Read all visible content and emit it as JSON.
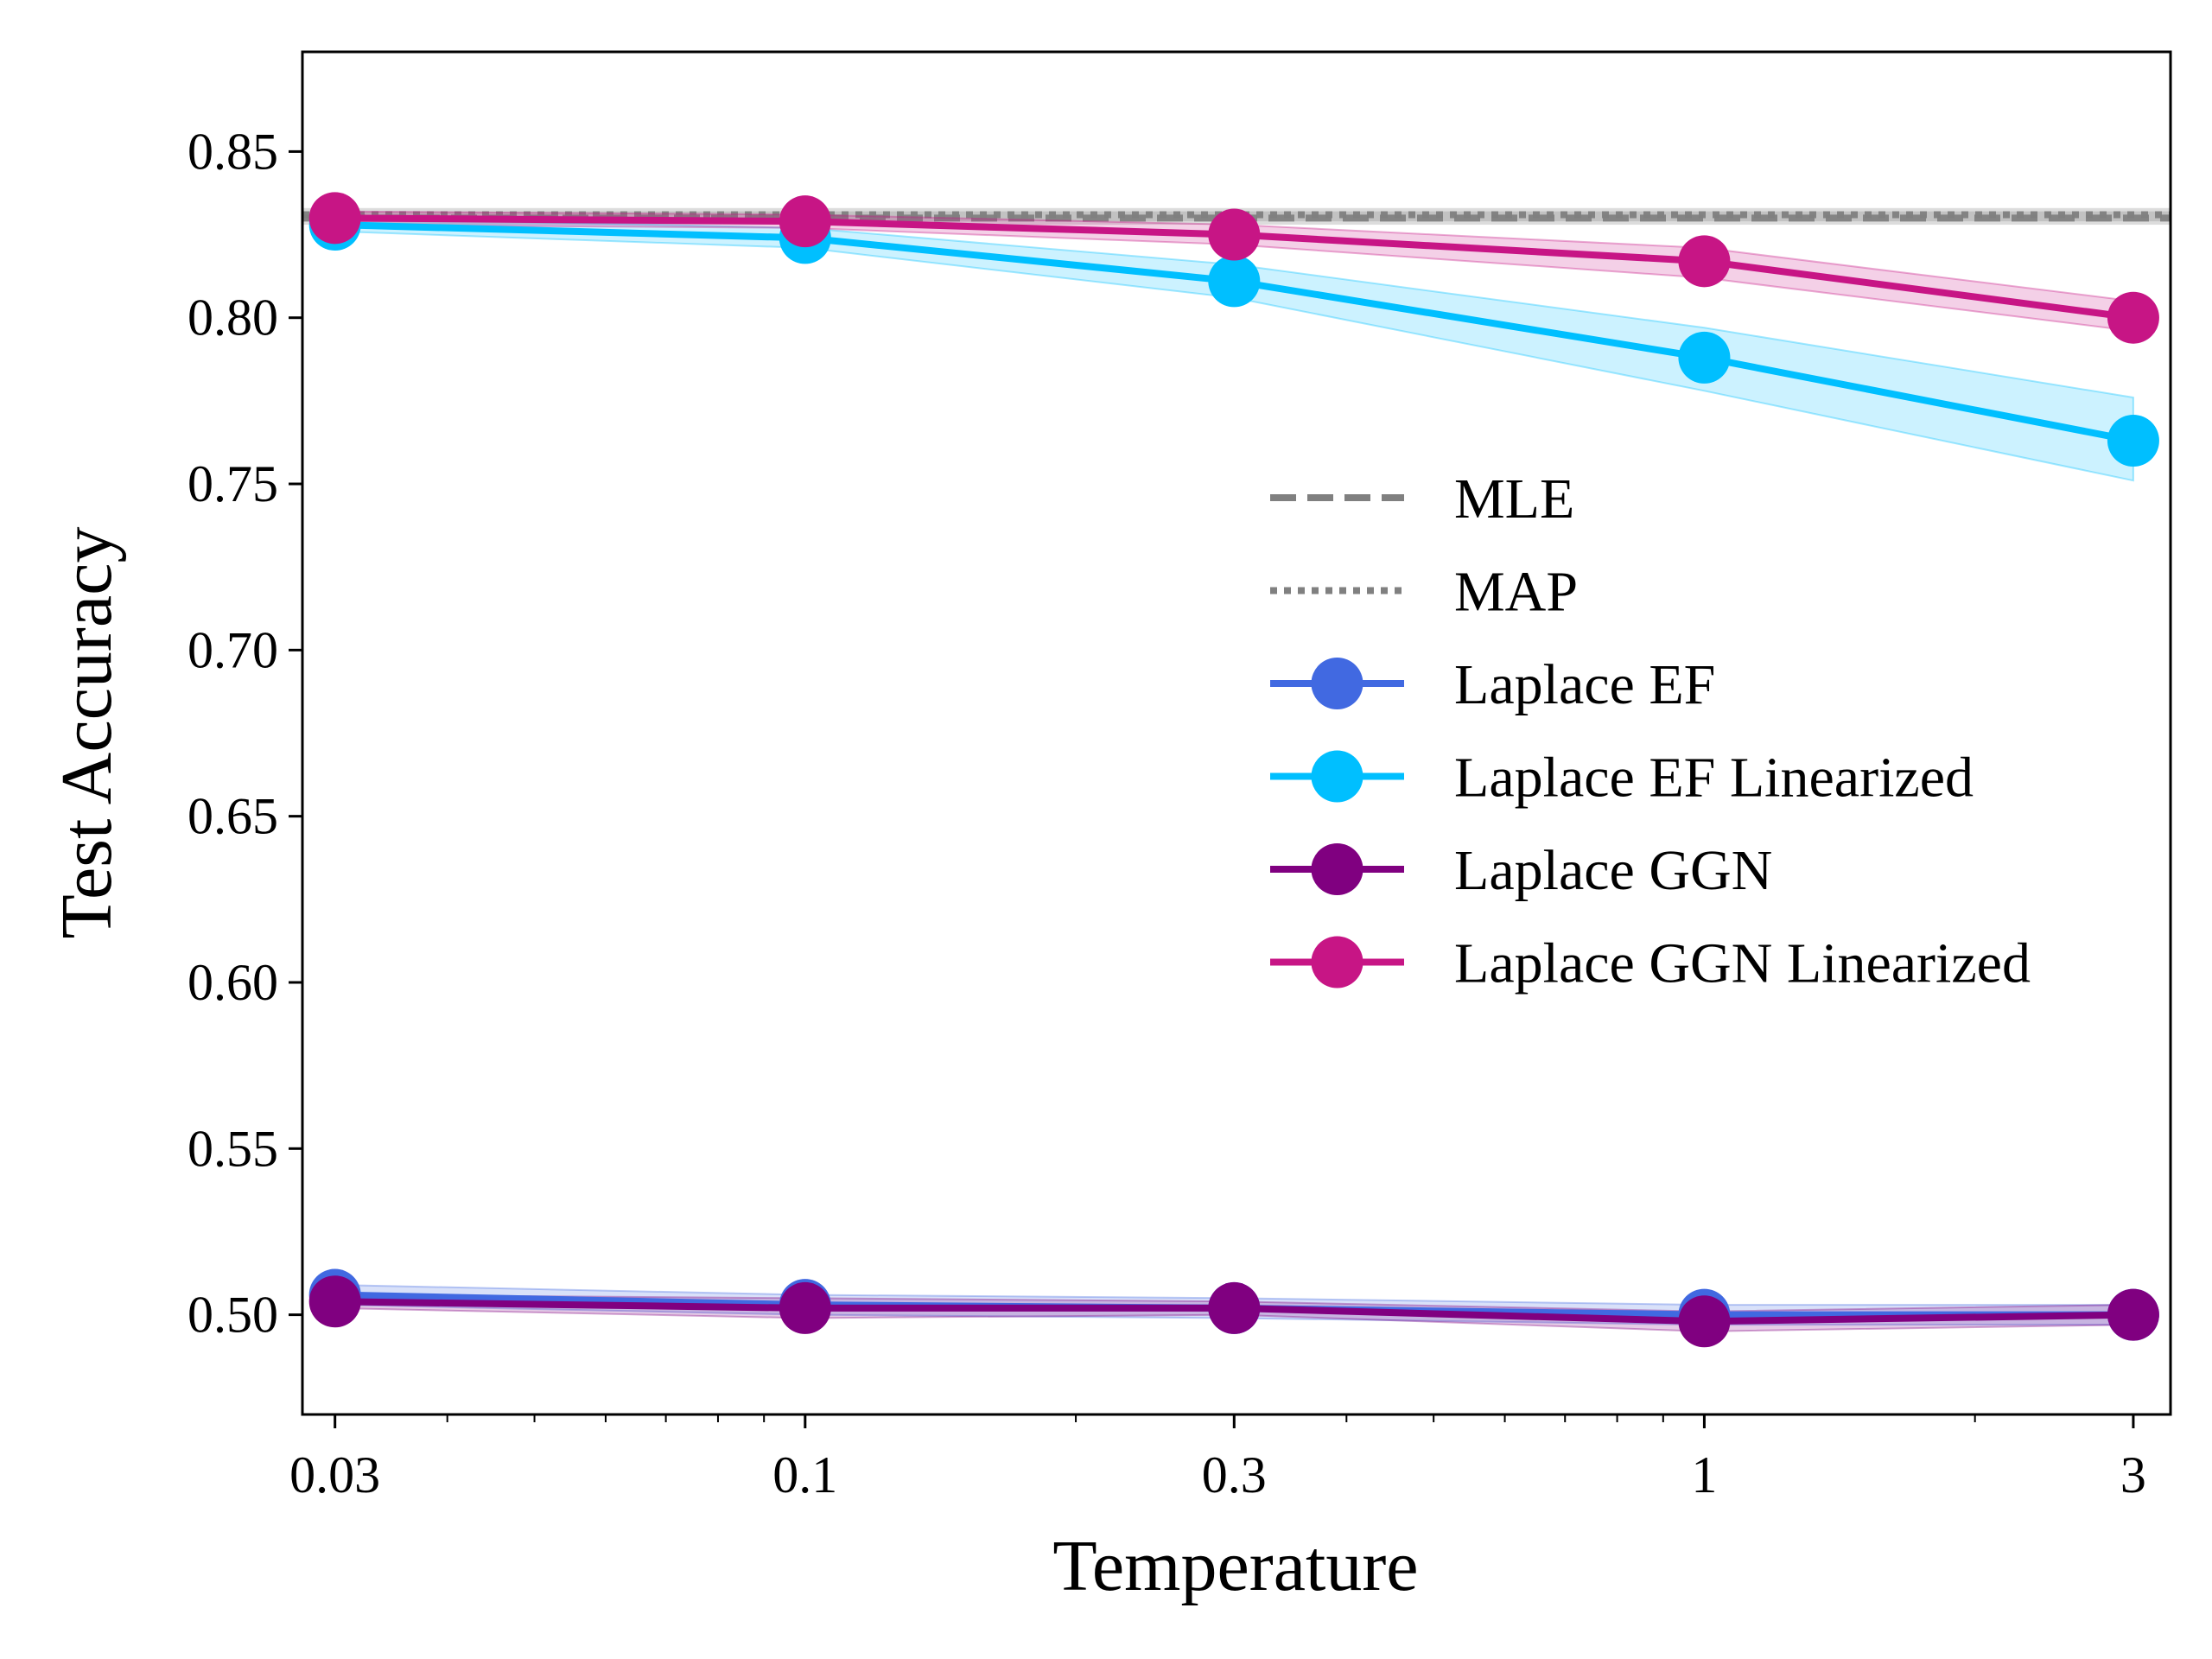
{
  "chart_data": {
    "type": "line",
    "xscale": "log",
    "x": [
      0.03,
      0.1,
      0.3,
      1,
      3
    ],
    "x_tick_labels": [
      "0.03",
      "0.1",
      "0.3",
      "1",
      "3"
    ],
    "xlim": [
      0.0276,
      3.3
    ],
    "ylim": [
      0.47,
      0.88
    ],
    "y_ticks": [
      0.5,
      0.55,
      0.6,
      0.65,
      0.7,
      0.75,
      0.8,
      0.85
    ],
    "y_tick_labels": [
      "0.50",
      "0.55",
      "0.60",
      "0.65",
      "0.70",
      "0.75",
      "0.80",
      "0.85"
    ],
    "xlabel": "Temperature",
    "ylabel": "Test Accuracy",
    "grid": false,
    "legend_position": "center-right",
    "reference_lines": [
      {
        "name": "MLE",
        "value": 0.83,
        "band": [
          0.828,
          0.832
        ],
        "style": "dashed",
        "color": "#808080"
      },
      {
        "name": "MAP",
        "value": 0.831,
        "band": [
          0.829,
          0.833
        ],
        "style": "dotted",
        "color": "#808080"
      }
    ],
    "series": [
      {
        "name": "Laplace EF",
        "color": "#4169e1",
        "values": [
          0.506,
          0.503,
          0.502,
          0.5,
          0.5
        ],
        "lower": [
          0.503,
          0.5,
          0.499,
          0.497,
          0.497
        ],
        "upper": [
          0.509,
          0.506,
          0.505,
          0.503,
          0.503
        ]
      },
      {
        "name": "Laplace EF Linearized",
        "color": "#00bfff",
        "values": [
          0.828,
          0.824,
          0.811,
          0.788,
          0.763
        ],
        "lower": [
          0.826,
          0.821,
          0.806,
          0.778,
          0.751
        ],
        "upper": [
          0.83,
          0.827,
          0.816,
          0.797,
          0.776
        ]
      },
      {
        "name": "Laplace GGN",
        "color": "#800080",
        "values": [
          0.504,
          0.502,
          0.502,
          0.498,
          0.5
        ],
        "lower": [
          0.502,
          0.499,
          0.5,
          0.495,
          0.497
        ],
        "upper": [
          0.506,
          0.505,
          0.504,
          0.501,
          0.503
        ]
      },
      {
        "name": "Laplace GGN Linearized",
        "color": "#c71585",
        "values": [
          0.83,
          0.829,
          0.825,
          0.817,
          0.8
        ],
        "lower": [
          0.828,
          0.827,
          0.822,
          0.812,
          0.796
        ],
        "upper": [
          0.832,
          0.831,
          0.828,
          0.821,
          0.805
        ]
      }
    ]
  }
}
